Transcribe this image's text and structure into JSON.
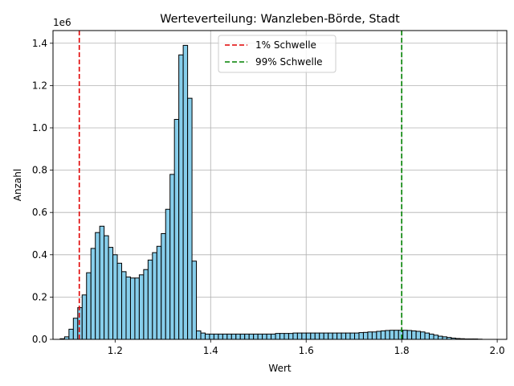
{
  "chart_data": {
    "type": "bar",
    "title": "Werteverteilung: Wanzleben-Börde, Stadt",
    "xlabel": "Wert",
    "ylabel": "Anzahl",
    "y_offset_label": "1e6",
    "xlim": [
      1.07,
      2.02
    ],
    "ylim": [
      0,
      1.46
    ],
    "x_ticks": [
      1.2,
      1.4,
      1.6,
      1.8,
      2.0
    ],
    "x_tick_labels": [
      "1.2",
      "1.4",
      "1.6",
      "1.8",
      "2.0"
    ],
    "y_ticks": [
      0,
      0.2,
      0.4,
      0.6,
      0.8,
      1.0,
      1.2,
      1.4
    ],
    "y_tick_labels": [
      "0.0",
      "0.2",
      "0.4",
      "0.6",
      "0.8",
      "1.0",
      "1.2",
      "1.4"
    ],
    "grid": true,
    "bar_color": "#87ceeb",
    "bar_edge_color": "#000000",
    "bin_start": 1.085,
    "bin_width": 0.0092,
    "values": [
      0.003,
      0.012,
      0.048,
      0.1,
      0.15,
      0.21,
      0.315,
      0.43,
      0.505,
      0.535,
      0.49,
      0.435,
      0.4,
      0.36,
      0.32,
      0.295,
      0.29,
      0.29,
      0.305,
      0.33,
      0.375,
      0.41,
      0.44,
      0.5,
      0.615,
      0.78,
      1.04,
      1.345,
      1.39,
      1.14,
      0.37,
      0.04,
      0.03,
      0.025,
      0.025,
      0.025,
      0.025,
      0.025,
      0.025,
      0.025,
      0.025,
      0.025,
      0.025,
      0.025,
      0.025,
      0.025,
      0.025,
      0.025,
      0.025,
      0.028,
      0.028,
      0.028,
      0.028,
      0.03,
      0.03,
      0.03,
      0.03,
      0.03,
      0.03,
      0.03,
      0.03,
      0.03,
      0.03,
      0.03,
      0.03,
      0.03,
      0.03,
      0.03,
      0.032,
      0.033,
      0.035,
      0.035,
      0.038,
      0.04,
      0.042,
      0.043,
      0.043,
      0.043,
      0.043,
      0.042,
      0.04,
      0.038,
      0.035,
      0.03,
      0.025,
      0.02,
      0.015,
      0.012,
      0.009,
      0.006,
      0.004,
      0.003,
      0.002,
      0.002,
      0.002,
      0.001
    ],
    "series": [
      {
        "name": "1% Schwelle",
        "type": "vline",
        "x": 1.125,
        "color": "#e00000"
      },
      {
        "name": "99% Schwelle",
        "type": "vline",
        "x": 1.8,
        "color": "#008000"
      }
    ],
    "legend_position": "top-center"
  }
}
